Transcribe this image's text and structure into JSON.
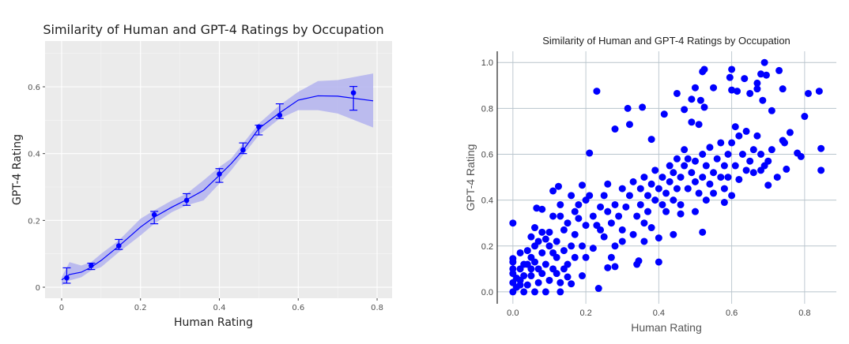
{
  "chart_data": [
    {
      "type": "line",
      "title": "Similarity of Human and GPT-4 Ratings by Occupation",
      "xlabel": "Human Rating",
      "ylabel": "GPT-4 Rating",
      "xlim": [
        -0.042,
        0.838
      ],
      "ylim": [
        -0.033,
        0.737
      ],
      "xticks": [
        0,
        0.2,
        0.4,
        0.6,
        0.8
      ],
      "xtick_labels": [
        "0",
        "0.2",
        "0.4",
        "0.6",
        "0.8"
      ],
      "yticks": [
        0,
        0.2,
        0.4,
        0.6
      ],
      "ytick_labels": [
        "0",
        "0.2",
        "0.4",
        "0.6"
      ],
      "grid": true,
      "colors": {
        "points": "#0000ff",
        "band": "#b3b3ee",
        "panel": "#ebebeb"
      },
      "points": [
        {
          "x": 0.013,
          "y": 0.028,
          "lo": 0.012,
          "hi": 0.058
        },
        {
          "x": 0.075,
          "y": 0.065,
          "lo": 0.053,
          "hi": 0.072
        },
        {
          "x": 0.145,
          "y": 0.124,
          "lo": 0.113,
          "hi": 0.143
        },
        {
          "x": 0.235,
          "y": 0.217,
          "lo": 0.19,
          "hi": 0.227
        },
        {
          "x": 0.317,
          "y": 0.26,
          "lo": 0.245,
          "hi": 0.28
        },
        {
          "x": 0.4,
          "y": 0.339,
          "lo": 0.314,
          "hi": 0.355
        },
        {
          "x": 0.46,
          "y": 0.411,
          "lo": 0.4,
          "hi": 0.432
        },
        {
          "x": 0.5,
          "y": 0.48,
          "lo": 0.456,
          "hi": 0.485
        },
        {
          "x": 0.553,
          "y": 0.515,
          "lo": 0.505,
          "hi": 0.549
        },
        {
          "x": 0.74,
          "y": 0.582,
          "lo": 0.53,
          "hi": 0.601
        }
      ],
      "smooth": {
        "x": [
          0,
          0.02,
          0.05,
          0.075,
          0.1,
          0.145,
          0.2,
          0.235,
          0.28,
          0.317,
          0.36,
          0.4,
          0.43,
          0.46,
          0.5,
          0.553,
          0.6,
          0.65,
          0.7,
          0.79
        ],
        "y": [
          0.022,
          0.038,
          0.045,
          0.06,
          0.08,
          0.123,
          0.18,
          0.21,
          0.24,
          0.262,
          0.29,
          0.335,
          0.37,
          0.41,
          0.475,
          0.522,
          0.56,
          0.573,
          0.572,
          0.558
        ],
        "lower": [
          0.005,
          0.02,
          0.03,
          0.05,
          0.06,
          0.105,
          0.155,
          0.19,
          0.225,
          0.245,
          0.26,
          0.31,
          0.35,
          0.395,
          0.455,
          0.505,
          0.53,
          0.53,
          0.52,
          0.478
        ],
        "upper": [
          0.03,
          0.075,
          0.065,
          0.075,
          0.1,
          0.14,
          0.205,
          0.23,
          0.26,
          0.28,
          0.32,
          0.36,
          0.385,
          0.43,
          0.49,
          0.545,
          0.585,
          0.617,
          0.62,
          0.64
        ]
      }
    },
    {
      "type": "scatter",
      "title": "Similarity of Human and GPT-4 Ratings by Occupation",
      "xlabel": "Human Rating",
      "ylabel": "GPT-4 Rating",
      "xlim": [
        -0.043,
        0.887
      ],
      "ylim": [
        -0.052,
        1.049
      ],
      "xticks": [
        0,
        0.2,
        0.4,
        0.6,
        0.8
      ],
      "xtick_labels": [
        "0.0",
        "0.2",
        "0.4",
        "0.6",
        "0.8"
      ],
      "yticks": [
        0,
        0.2,
        0.4,
        0.6,
        0.8,
        1.0
      ],
      "ytick_labels": [
        "0.0",
        "0.2",
        "0.4",
        "0.6",
        "0.8",
        "1.0"
      ],
      "grid": true,
      "colors": {
        "points": "#0000ff",
        "grid": "#b8c4cc"
      },
      "points": [
        [
          0.0,
          0.3
        ],
        [
          0.23,
          0.875
        ],
        [
          0.315,
          0.8
        ],
        [
          0.355,
          0.805
        ],
        [
          0.32,
          0.73
        ],
        [
          0.28,
          0.71
        ],
        [
          0.38,
          0.665
        ],
        [
          0.415,
          0.775
        ],
        [
          0.45,
          0.865
        ],
        [
          0.21,
          0.605
        ],
        [
          0.52,
          0.96
        ],
        [
          0.525,
          0.97
        ],
        [
          0.5,
          0.89
        ],
        [
          0.55,
          0.89
        ],
        [
          0.515,
          0.835
        ],
        [
          0.49,
          0.84
        ],
        [
          0.47,
          0.795
        ],
        [
          0.49,
          0.74
        ],
        [
          0.51,
          0.73
        ],
        [
          0.525,
          0.805
        ],
        [
          0.595,
          0.935
        ],
        [
          0.6,
          0.97
        ],
        [
          0.6,
          0.88
        ],
        [
          0.615,
          0.875
        ],
        [
          0.635,
          0.93
        ],
        [
          0.65,
          0.865
        ],
        [
          0.67,
          0.91
        ],
        [
          0.68,
          0.95
        ],
        [
          0.69,
          1.0
        ],
        [
          0.685,
          0.835
        ],
        [
          0.695,
          0.945
        ],
        [
          0.67,
          0.885
        ],
        [
          0.71,
          0.79
        ],
        [
          0.73,
          0.965
        ],
        [
          0.74,
          0.885
        ],
        [
          0.8,
          0.765
        ],
        [
          0.81,
          0.865
        ],
        [
          0.84,
          0.875
        ],
        [
          0.76,
          0.695
        ],
        [
          0.845,
          0.625
        ],
        [
          0.845,
          0.53
        ],
        [
          0.78,
          0.605
        ],
        [
          0.79,
          0.59
        ],
        [
          0.75,
          0.535
        ],
        [
          0.745,
          0.65
        ],
        [
          0.74,
          0.66
        ],
        [
          0.725,
          0.5
        ],
        [
          0.7,
          0.465
        ],
        [
          0.7,
          0.57
        ],
        [
          0.71,
          0.62
        ],
        [
          0.52,
          0.26
        ],
        [
          0.44,
          0.25
        ],
        [
          0.4,
          0.13
        ],
        [
          0.235,
          0.015
        ],
        [
          0.13,
          0.0
        ],
        [
          0.26,
          0.105
        ],
        [
          0.28,
          0.11
        ],
        [
          0.34,
          0.12
        ],
        [
          0.345,
          0.135
        ],
        [
          0.4,
          0.235
        ],
        [
          0.16,
          0.035
        ],
        [
          0.19,
          0.07
        ],
        [
          0.15,
          0.065
        ],
        [
          0.065,
          0.365
        ],
        [
          0.08,
          0.36
        ],
        [
          0.11,
          0.44
        ],
        [
          0.125,
          0.46
        ],
        [
          0.19,
          0.465
        ],
        [
          0.0,
          0.145
        ],
        [
          0.0,
          0.13
        ],
        [
          0.0,
          0.0
        ],
        [
          0.01,
          0.02
        ],
        [
          0.02,
          0.05
        ],
        [
          0.0,
          0.08
        ],
        [
          0.03,
          0.0
        ],
        [
          0.04,
          0.03
        ],
        [
          0.05,
          0.07
        ],
        [
          0.02,
          0.1
        ],
        [
          0.06,
          0.0
        ],
        [
          0.07,
          0.04
        ],
        [
          0.08,
          0.08
        ],
        [
          0.01,
          0.06
        ],
        [
          0.03,
          0.12
        ],
        [
          0.05,
          0.15
        ],
        [
          0.09,
          0.12
        ],
        [
          0.1,
          0.05
        ],
        [
          0.04,
          0.18
        ],
        [
          0.06,
          0.2
        ],
        [
          0.08,
          0.17
        ],
        [
          0.1,
          0.2
        ],
        [
          0.12,
          0.15
        ],
        [
          0.11,
          0.1
        ],
        [
          0.13,
          0.04
        ],
        [
          0.09,
          0.0
        ],
        [
          0.07,
          0.1
        ],
        [
          0.02,
          0.03
        ],
        [
          0.0,
          0.04
        ],
        [
          0.0,
          0.1
        ],
        [
          0.03,
          0.07
        ],
        [
          0.05,
          0.1
        ],
        [
          0.12,
          0.22
        ],
        [
          0.14,
          0.18
        ],
        [
          0.15,
          0.12
        ],
        [
          0.16,
          0.2
        ],
        [
          0.14,
          0.27
        ],
        [
          0.1,
          0.26
        ],
        [
          0.06,
          0.28
        ],
        [
          0.05,
          0.24
        ],
        [
          0.09,
          0.23
        ],
        [
          0.11,
          0.33
        ],
        [
          0.13,
          0.38
        ],
        [
          0.15,
          0.3
        ],
        [
          0.17,
          0.25
        ],
        [
          0.18,
          0.32
        ],
        [
          0.2,
          0.29
        ],
        [
          0.19,
          0.2
        ],
        [
          0.17,
          0.15
        ],
        [
          0.2,
          0.15
        ],
        [
          0.22,
          0.19
        ],
        [
          0.18,
          0.38
        ],
        [
          0.2,
          0.4
        ],
        [
          0.21,
          0.42
        ],
        [
          0.16,
          0.42
        ],
        [
          0.22,
          0.33
        ],
        [
          0.24,
          0.27
        ],
        [
          0.25,
          0.24
        ],
        [
          0.23,
          0.29
        ],
        [
          0.26,
          0.35
        ],
        [
          0.27,
          0.3
        ],
        [
          0.24,
          0.37
        ],
        [
          0.25,
          0.42
        ],
        [
          0.26,
          0.47
        ],
        [
          0.28,
          0.38
        ],
        [
          0.29,
          0.33
        ],
        [
          0.3,
          0.27
        ],
        [
          0.28,
          0.2
        ],
        [
          0.27,
          0.15
        ],
        [
          0.3,
          0.22
        ],
        [
          0.31,
          0.37
        ],
        [
          0.32,
          0.42
        ],
        [
          0.3,
          0.45
        ],
        [
          0.33,
          0.48
        ],
        [
          0.34,
          0.33
        ],
        [
          0.35,
          0.38
        ],
        [
          0.33,
          0.25
        ],
        [
          0.36,
          0.3
        ],
        [
          0.35,
          0.45
        ],
        [
          0.36,
          0.5
        ],
        [
          0.37,
          0.42
        ],
        [
          0.38,
          0.47
        ],
        [
          0.37,
          0.35
        ],
        [
          0.39,
          0.4
        ],
        [
          0.38,
          0.28
        ],
        [
          0.36,
          0.22
        ],
        [
          0.39,
          0.53
        ],
        [
          0.4,
          0.45
        ],
        [
          0.41,
          0.5
        ],
        [
          0.42,
          0.43
        ],
        [
          0.41,
          0.38
        ],
        [
          0.43,
          0.48
        ],
        [
          0.43,
          0.55
        ],
        [
          0.44,
          0.52
        ],
        [
          0.45,
          0.45
        ],
        [
          0.44,
          0.4
        ],
        [
          0.46,
          0.5
        ],
        [
          0.47,
          0.55
        ],
        [
          0.46,
          0.38
        ],
        [
          0.48,
          0.45
        ],
        [
          0.48,
          0.58
        ],
        [
          0.47,
          0.62
        ],
        [
          0.49,
          0.52
        ],
        [
          0.5,
          0.48
        ],
        [
          0.5,
          0.57
        ],
        [
          0.51,
          0.43
        ],
        [
          0.52,
          0.5
        ],
        [
          0.52,
          0.6
        ],
        [
          0.53,
          0.55
        ],
        [
          0.54,
          0.47
        ],
        [
          0.54,
          0.63
        ],
        [
          0.55,
          0.52
        ],
        [
          0.55,
          0.43
        ],
        [
          0.56,
          0.58
        ],
        [
          0.57,
          0.5
        ],
        [
          0.57,
          0.65
        ],
        [
          0.58,
          0.55
        ],
        [
          0.58,
          0.45
        ],
        [
          0.59,
          0.6
        ],
        [
          0.59,
          0.5
        ],
        [
          0.6,
          0.42
        ],
        [
          0.6,
          0.65
        ],
        [
          0.61,
          0.55
        ],
        [
          0.62,
          0.68
        ],
        [
          0.62,
          0.49
        ],
        [
          0.63,
          0.6
        ],
        [
          0.64,
          0.53
        ],
        [
          0.64,
          0.7
        ],
        [
          0.65,
          0.57
        ],
        [
          0.66,
          0.62
        ],
        [
          0.66,
          0.52
        ],
        [
          0.67,
          0.68
        ],
        [
          0.68,
          0.6
        ],
        [
          0.68,
          0.53
        ],
        [
          0.69,
          0.55
        ],
        [
          0.61,
          0.72
        ],
        [
          0.58,
          0.39
        ],
        [
          0.5,
          0.35
        ],
        [
          0.46,
          0.34
        ],
        [
          0.42,
          0.35
        ],
        [
          0.45,
          0.58
        ],
        [
          0.53,
          0.4
        ],
        [
          0.08,
          0.26
        ],
        [
          0.07,
          0.22
        ],
        [
          0.04,
          0.12
        ],
        [
          0.02,
          0.17
        ],
        [
          0.06,
          0.13
        ],
        [
          0.12,
          0.08
        ],
        [
          0.14,
          0.1
        ],
        [
          0.11,
          0.17
        ],
        [
          0.13,
          0.33
        ],
        [
          0.17,
          0.35
        ]
      ]
    }
  ]
}
